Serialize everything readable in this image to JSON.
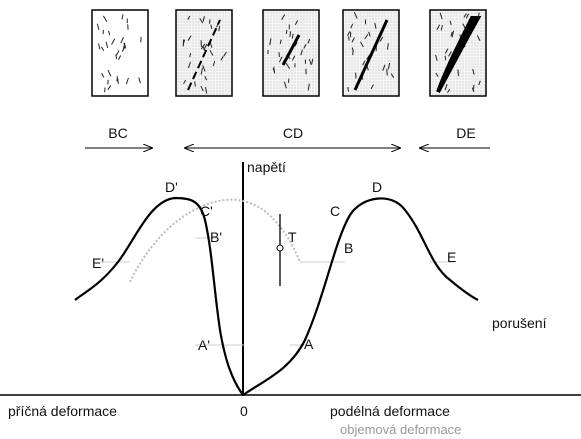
{
  "stages": {
    "bc": "BC",
    "cd": "CD",
    "de": "DE"
  },
  "axes": {
    "stress": "napětí",
    "transverse": "příčná deformace",
    "origin": "0",
    "longitudinal": "podélná deformace",
    "volumetric": "objemová deformace"
  },
  "points_left": {
    "d": "D'",
    "c": "C'",
    "b": "B'",
    "e": "E'",
    "a": "A'"
  },
  "points_right": {
    "c": "C",
    "d": "D",
    "b": "B",
    "e": "E",
    "a": "A"
  },
  "marker": "T",
  "failure": "porušení"
}
